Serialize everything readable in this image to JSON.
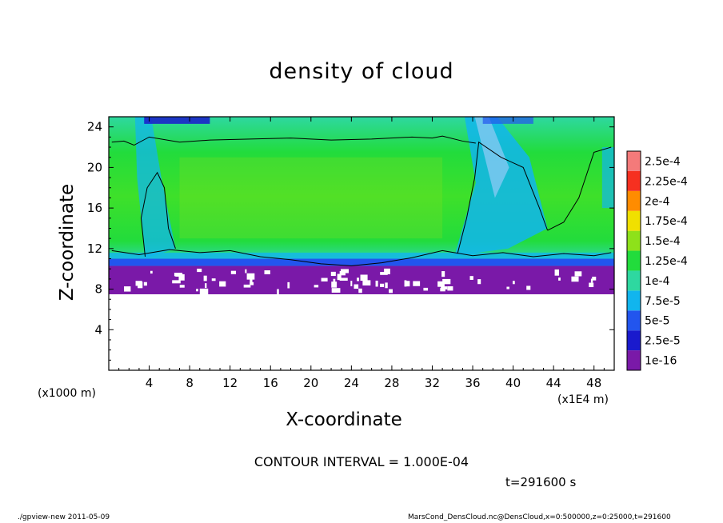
{
  "chart_data": {
    "type": "heatmap",
    "title": "density of cloud",
    "xlabel": "X-coordinate",
    "ylabel": "Z-coordinate",
    "x_unit_left": "(x1000 m)",
    "x_unit_right": "(x1E4 m)",
    "xlim": [
      0,
      50
    ],
    "ylim": [
      0,
      25
    ],
    "x_ticks": [
      "4",
      "8",
      "12",
      "16",
      "20",
      "24",
      "28",
      "32",
      "36",
      "40",
      "44",
      "48"
    ],
    "x_tick_values": [
      4,
      8,
      12,
      16,
      20,
      24,
      28,
      32,
      36,
      40,
      44,
      48
    ],
    "y_ticks": [
      "4",
      "8",
      "12",
      "16",
      "20",
      "24"
    ],
    "y_tick_values": [
      4,
      8,
      12,
      16,
      20,
      24
    ],
    "colorbar": {
      "labels": [
        "1e-16",
        "2.5e-5",
        "5e-5",
        "7.5e-5",
        "1e-4",
        "1.25e-4",
        "1.5e-4",
        "1.75e-4",
        "2e-4",
        "2.25e-4",
        "2.5e-4"
      ],
      "colors": [
        "#7a19a8",
        "#1a1acd",
        "#2255ee",
        "#11b5ee",
        "#2ed8a0",
        "#22dc3c",
        "#8ee11a",
        "#f0e000",
        "#ff8c00",
        "#f63020",
        "#f47a7a"
      ]
    },
    "field": {
      "cloud_base_z": 7.5,
      "cloud_layer_top_z": 23,
      "dominant_value": "1.25e-4"
    },
    "contour_interval": "CONTOUR INTERVAL = 1.000E-04",
    "time": "t=291600 s"
  },
  "footer": {
    "left": "./gpview-new  2011-05-09",
    "right": "MarsCond_DensCloud.nc@DensCloud,x=0:500000,z=0:25000,t=291600"
  }
}
